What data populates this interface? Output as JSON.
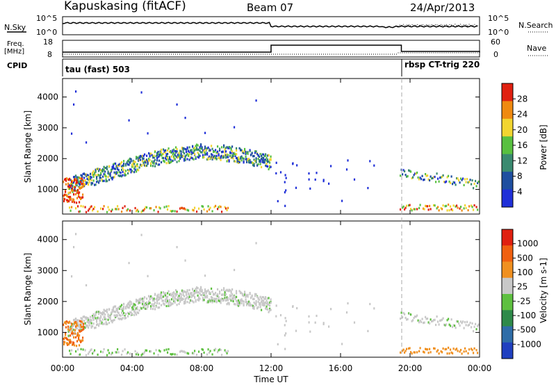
{
  "header": {
    "station": "Kapuskasing (fitACF)",
    "beam": "Beam 07",
    "date": "24/Apr/2013"
  },
  "left_labels": {
    "nsky": "N.Sky",
    "freq_line1": "Freq.",
    "freq_line2": "[MHz]",
    "cpid": "CPID"
  },
  "right_labels": {
    "nsearch": "N.Search",
    "nave": "Nave"
  },
  "summary_ticks": {
    "nsky_top": "10^5",
    "nsky_bottom": "10^0",
    "nsearch_top": "10^5",
    "nsearch_bottom": "10^0",
    "freq_top": "18",
    "freq_bottom": "8",
    "nave_top": "60",
    "nave_bottom": "0"
  },
  "cpid_segments": [
    {
      "text": "tau (fast) 503"
    },
    {
      "text": "rbsp CT-trig 220"
    }
  ],
  "chart_data": [
    {
      "type": "heatmap",
      "panel": "power",
      "ylabel": "Slant Range [km]",
      "colorbar_label": "Power [dB]",
      "ylim": [
        200,
        4600
      ],
      "y_ticks": [
        "1000",
        "2000",
        "3000",
        "4000"
      ],
      "colorbar_ticks": [
        "28",
        "24",
        "20",
        "16",
        "12",
        "8",
        "4"
      ],
      "colors": [
        "#2030d8",
        "#1f4fa0",
        "#3a8a70",
        "#58c040",
        "#f2d530",
        "#f08a10",
        "#e02010"
      ],
      "xlim": [
        "00:00",
        "24:00"
      ],
      "x_ticks": [
        "00:00",
        "04:00",
        "08:00",
        "12:00",
        "16:00",
        "20:00",
        "00:00"
      ],
      "xlabel": "Time UT"
    },
    {
      "type": "heatmap",
      "panel": "velocity",
      "ylabel": "Slant Range [km]",
      "colorbar_label": "Velocity [m s-1]",
      "ylim": [
        200,
        4600
      ],
      "y_ticks": [
        "1000",
        "2000",
        "3000",
        "4000"
      ],
      "colorbar_ticks": [
        "1000",
        "500",
        "100",
        "25",
        "-25",
        "-100",
        "-500",
        "-1000"
      ],
      "colors": [
        "#2040c0",
        "#2f6da8",
        "#2e8a4a",
        "#5ec040",
        "#c8c8c8",
        "#f09020",
        "#f06010",
        "#e02010"
      ],
      "xlim": [
        "00:00",
        "24:00"
      ],
      "x_ticks": [
        "00:00",
        "04:00",
        "08:00",
        "12:00",
        "16:00",
        "20:00",
        "00:00"
      ],
      "xlabel": "Time UT"
    },
    {
      "type": "line",
      "panel": "summary-noise",
      "series": [
        {
          "name": "N.Sky",
          "style": "solid"
        },
        {
          "name": "N.Search",
          "style": "dotted"
        }
      ]
    },
    {
      "type": "line",
      "panel": "summary-freq",
      "series": [
        {
          "name": "Freq.",
          "style": "solid",
          "x": [
            "00:00",
            "11:50",
            "12:00",
            "18:20",
            "19:30",
            "21:30",
            "24:00"
          ],
          "values": [
            10.5,
            10.5,
            15.5,
            15.5,
            11.0,
            11.0,
            10.2
          ]
        },
        {
          "name": "Nave",
          "style": "dotted"
        }
      ]
    }
  ]
}
